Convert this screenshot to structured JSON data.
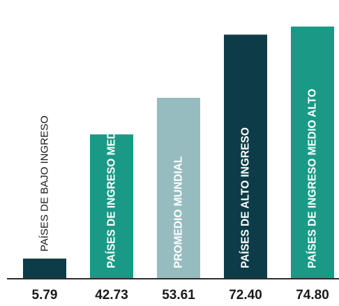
{
  "chart_data": {
    "type": "bar",
    "categories": [
      "PAÍSES DE BAJO INGRESO",
      "PAÍSES DE INGRESO MEDIO BAJO",
      "PROMEDIO MUNDIAL",
      "PAÍSES DE ALTO INGRESO",
      "PAÍSES DE INGRESO MEDIO ALTO"
    ],
    "values": [
      5.79,
      42.73,
      53.61,
      72.4,
      74.8
    ],
    "value_labels": [
      "5.79",
      "42.73",
      "53.61",
      "72.40",
      "74.80"
    ],
    "colors": [
      "#0d3b47",
      "#1a9a86",
      "#97bcbf",
      "#0d3b47",
      "#1a9a86"
    ],
    "label_inside": [
      false,
      false,
      true,
      true,
      true
    ],
    "ylim": [
      0,
      80
    ],
    "grid": false,
    "axis_color": "#2b2b2b"
  }
}
